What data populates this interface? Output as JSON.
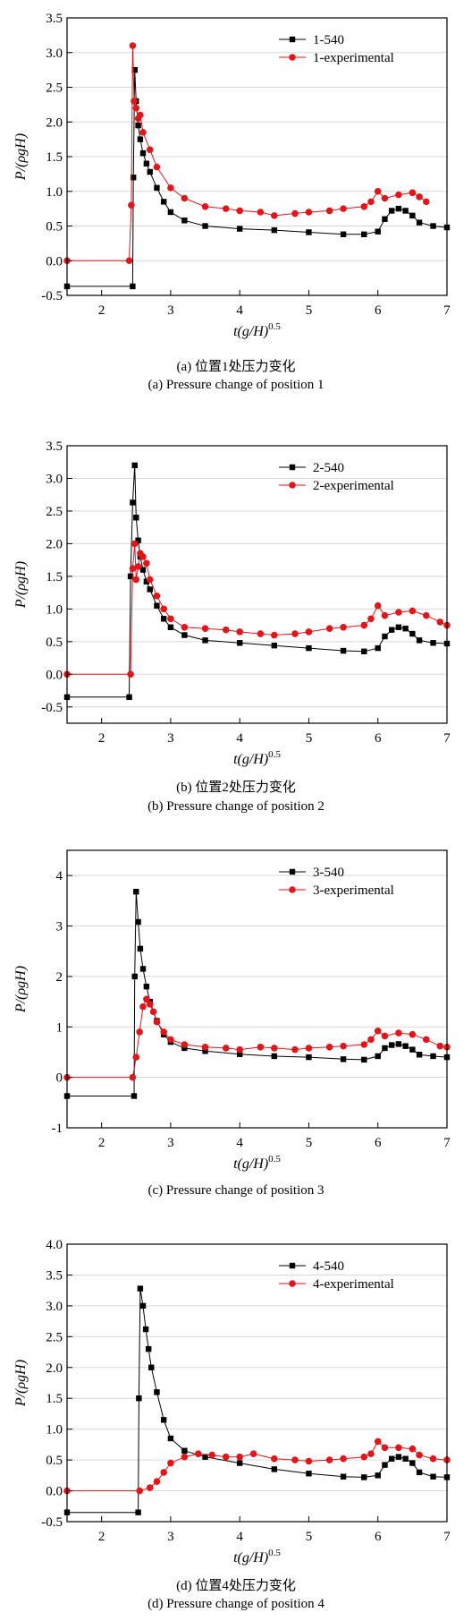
{
  "colors": {
    "sim": "#000000",
    "exp": "#e0161b",
    "grid": "#d9d9d9",
    "axis": "#000000"
  },
  "chart_data": [
    {
      "type": "line",
      "caption_cn": "(a) 位置1处压力变化",
      "caption_en": "(a) Pressure change of position 1",
      "xlabel": {
        "pre": "t",
        "paren": "(g/H)",
        "sup": "0.5"
      },
      "ylabel": "P/(ρgH)",
      "xlim": [
        1.5,
        7
      ],
      "ylim": [
        -0.5,
        3.5
      ],
      "xticks": [
        2,
        3,
        4,
        5,
        6,
        7
      ],
      "yticks": [
        -0.5,
        0.0,
        0.5,
        1.0,
        1.5,
        2.0,
        2.5,
        3.0,
        3.5
      ],
      "ytick_labels": [
        "-0.5",
        "0.0",
        "0.5",
        "1.0",
        "1.5",
        "2.0",
        "2.5",
        "3.0",
        "3.5"
      ],
      "grid": true,
      "legend_position": "top-right",
      "series": [
        {
          "name": "1-540",
          "marker": "square",
          "x": [
            1.5,
            2.45,
            2.46,
            2.48,
            2.5,
            2.53,
            2.56,
            2.6,
            2.65,
            2.7,
            2.8,
            2.9,
            3.0,
            3.2,
            3.5,
            4.0,
            4.5,
            5.0,
            5.5,
            5.8,
            6.0,
            6.1,
            6.2,
            6.3,
            6.4,
            6.5,
            6.6,
            6.8,
            7.0
          ],
          "y": [
            -0.37,
            -0.37,
            1.2,
            2.75,
            2.3,
            1.95,
            1.75,
            1.55,
            1.4,
            1.28,
            1.05,
            0.85,
            0.7,
            0.58,
            0.5,
            0.46,
            0.44,
            0.41,
            0.38,
            0.38,
            0.42,
            0.6,
            0.72,
            0.75,
            0.72,
            0.65,
            0.55,
            0.5,
            0.48
          ]
        },
        {
          "name": "1-experimental",
          "marker": "circle",
          "x": [
            1.5,
            2.4,
            2.43,
            2.45,
            2.47,
            2.5,
            2.53,
            2.56,
            2.6,
            2.7,
            2.8,
            3.0,
            3.2,
            3.5,
            3.8,
            4.0,
            4.3,
            4.5,
            4.8,
            5.0,
            5.3,
            5.5,
            5.8,
            5.9,
            6.0,
            6.1,
            6.3,
            6.5,
            6.6,
            6.7
          ],
          "y": [
            0.0,
            0.0,
            0.8,
            3.1,
            2.3,
            2.2,
            2.05,
            2.1,
            1.85,
            1.6,
            1.35,
            1.05,
            0.9,
            0.78,
            0.75,
            0.72,
            0.7,
            0.65,
            0.68,
            0.7,
            0.72,
            0.75,
            0.78,
            0.85,
            1.0,
            0.9,
            0.95,
            0.98,
            0.92,
            0.85
          ]
        }
      ]
    },
    {
      "type": "line",
      "caption_cn": "(b) 位置2处压力变化",
      "caption_en": "(b) Pressure change of position 2",
      "xlabel": {
        "pre": "t",
        "paren": "(g/H)",
        "sup": "0.5"
      },
      "ylabel": "P/(ρgH)",
      "xlim": [
        1.5,
        7
      ],
      "ylim": [
        -0.75,
        3.5
      ],
      "xticks": [
        2,
        3,
        4,
        5,
        6,
        7
      ],
      "yticks": [
        -0.5,
        0.0,
        0.5,
        1.0,
        1.5,
        2.0,
        2.5,
        3.0,
        3.5
      ],
      "ytick_labels": [
        "-0.5",
        "0.0",
        "0.5",
        "1.0",
        "1.5",
        "2.0",
        "2.5",
        "3.0",
        "3.5"
      ],
      "grid": true,
      "legend_position": "top-right",
      "series": [
        {
          "name": "2-540",
          "marker": "square",
          "x": [
            1.5,
            2.4,
            2.42,
            2.45,
            2.48,
            2.5,
            2.53,
            2.56,
            2.6,
            2.65,
            2.7,
            2.8,
            2.9,
            3.0,
            3.2,
            3.5,
            4.0,
            4.5,
            5.0,
            5.5,
            5.8,
            6.0,
            6.1,
            6.2,
            6.3,
            6.4,
            6.5,
            6.6,
            6.8,
            7.0
          ],
          "y": [
            -0.35,
            -0.35,
            1.5,
            2.63,
            3.2,
            2.4,
            2.05,
            1.8,
            1.6,
            1.42,
            1.3,
            1.05,
            0.85,
            0.72,
            0.6,
            0.52,
            0.48,
            0.44,
            0.4,
            0.36,
            0.35,
            0.4,
            0.58,
            0.68,
            0.72,
            0.7,
            0.62,
            0.52,
            0.48,
            0.47
          ]
        },
        {
          "name": "2-experimental",
          "marker": "circle",
          "x": [
            1.5,
            2.42,
            2.45,
            2.48,
            2.5,
            2.53,
            2.56,
            2.6,
            2.65,
            2.7,
            2.8,
            2.9,
            3.0,
            3.2,
            3.5,
            3.8,
            4.0,
            4.3,
            4.5,
            4.8,
            5.0,
            5.3,
            5.5,
            5.8,
            5.9,
            6.0,
            6.1,
            6.3,
            6.5,
            6.7,
            6.9,
            7.0
          ],
          "y": [
            0.0,
            0.0,
            1.62,
            2.0,
            1.45,
            1.65,
            1.85,
            1.8,
            1.7,
            1.45,
            1.2,
            1.0,
            0.85,
            0.72,
            0.7,
            0.68,
            0.65,
            0.62,
            0.6,
            0.62,
            0.65,
            0.7,
            0.72,
            0.75,
            0.85,
            1.05,
            0.9,
            0.95,
            0.97,
            0.9,
            0.8,
            0.75
          ]
        }
      ]
    },
    {
      "type": "line",
      "caption_cn": "",
      "caption_en": "(c) Pressure change of position 3",
      "xlabel": {
        "pre": "t",
        "paren": "(g/H)",
        "sup": "0.5"
      },
      "ylabel": "P/(ρgH)",
      "xlim": [
        1.5,
        7
      ],
      "ylim": [
        -1,
        4.5
      ],
      "xticks": [
        2,
        3,
        4,
        5,
        6,
        7
      ],
      "yticks": [
        -1,
        0,
        1,
        2,
        3,
        4
      ],
      "ytick_labels": [
        "-1",
        "0",
        "1",
        "2",
        "3",
        "4"
      ],
      "grid": true,
      "legend_position": "top-right",
      "series": [
        {
          "name": "3-540",
          "marker": "square",
          "x": [
            1.5,
            2.47,
            2.48,
            2.5,
            2.53,
            2.56,
            2.6,
            2.65,
            2.7,
            2.8,
            2.9,
            3.0,
            3.2,
            3.5,
            4.0,
            4.5,
            5.0,
            5.5,
            5.8,
            6.0,
            6.1,
            6.2,
            6.3,
            6.4,
            6.5,
            6.6,
            6.8,
            7.0
          ],
          "y": [
            -0.37,
            -0.37,
            2.0,
            3.68,
            3.08,
            2.55,
            2.15,
            1.8,
            1.5,
            1.12,
            0.85,
            0.7,
            0.58,
            0.52,
            0.46,
            0.42,
            0.4,
            0.36,
            0.35,
            0.42,
            0.58,
            0.64,
            0.66,
            0.62,
            0.55,
            0.45,
            0.42,
            0.4
          ]
        },
        {
          "name": "3-experimental",
          "marker": "circle",
          "x": [
            1.5,
            2.45,
            2.5,
            2.55,
            2.6,
            2.65,
            2.7,
            2.75,
            2.8,
            2.9,
            3.0,
            3.2,
            3.5,
            3.8,
            4.0,
            4.3,
            4.5,
            4.8,
            5.0,
            5.3,
            5.5,
            5.8,
            5.9,
            6.0,
            6.1,
            6.3,
            6.5,
            6.7,
            6.9,
            7.0
          ],
          "y": [
            0.0,
            0.0,
            0.4,
            0.9,
            1.4,
            1.55,
            1.45,
            1.3,
            1.1,
            0.9,
            0.75,
            0.65,
            0.6,
            0.58,
            0.55,
            0.6,
            0.58,
            0.55,
            0.58,
            0.6,
            0.62,
            0.65,
            0.75,
            0.92,
            0.82,
            0.88,
            0.85,
            0.75,
            0.62,
            0.6
          ]
        }
      ]
    },
    {
      "type": "line",
      "caption_cn": "(d) 位置4处压力变化",
      "caption_en": "(d) Pressure change of position 4",
      "xlabel": {
        "pre": "t",
        "paren": "(g/H)",
        "sup": "0.5"
      },
      "ylabel": "P/(ρgH)",
      "xlim": [
        1.5,
        7
      ],
      "ylim": [
        -0.5,
        4.0
      ],
      "xticks": [
        2,
        3,
        4,
        5,
        6,
        7
      ],
      "yticks": [
        -0.5,
        0.0,
        0.5,
        1.0,
        1.5,
        2.0,
        2.5,
        3.0,
        3.5,
        4.0
      ],
      "ytick_labels": [
        "-0.5",
        "0.0",
        "0.5",
        "1.0",
        "1.5",
        "2.0",
        "2.5",
        "3.0",
        "3.5",
        "4.0"
      ],
      "grid": true,
      "legend_position": "top-right",
      "series": [
        {
          "name": "4-540",
          "marker": "square",
          "x": [
            1.5,
            2.53,
            2.54,
            2.56,
            2.6,
            2.64,
            2.68,
            2.72,
            2.8,
            2.9,
            3.0,
            3.2,
            3.5,
            4.0,
            4.5,
            5.0,
            5.5,
            5.8,
            6.0,
            6.1,
            6.2,
            6.3,
            6.4,
            6.5,
            6.6,
            6.8,
            7.0
          ],
          "y": [
            -0.35,
            -0.35,
            1.5,
            3.28,
            3.0,
            2.62,
            2.3,
            2.0,
            1.6,
            1.15,
            0.85,
            0.65,
            0.55,
            0.45,
            0.35,
            0.28,
            0.23,
            0.22,
            0.25,
            0.42,
            0.52,
            0.55,
            0.52,
            0.45,
            0.3,
            0.23,
            0.22
          ]
        },
        {
          "name": "4-experimental",
          "marker": "circle",
          "x": [
            1.5,
            2.55,
            2.7,
            2.8,
            2.9,
            3.0,
            3.2,
            3.4,
            3.6,
            3.8,
            4.0,
            4.2,
            4.5,
            4.8,
            5.0,
            5.3,
            5.5,
            5.8,
            5.9,
            6.0,
            6.1,
            6.3,
            6.5,
            6.6,
            6.8,
            7.0
          ],
          "y": [
            0.0,
            0.0,
            0.05,
            0.15,
            0.3,
            0.45,
            0.55,
            0.6,
            0.58,
            0.55,
            0.55,
            0.6,
            0.52,
            0.5,
            0.48,
            0.5,
            0.52,
            0.55,
            0.6,
            0.8,
            0.7,
            0.7,
            0.68,
            0.58,
            0.52,
            0.5
          ]
        }
      ]
    }
  ]
}
